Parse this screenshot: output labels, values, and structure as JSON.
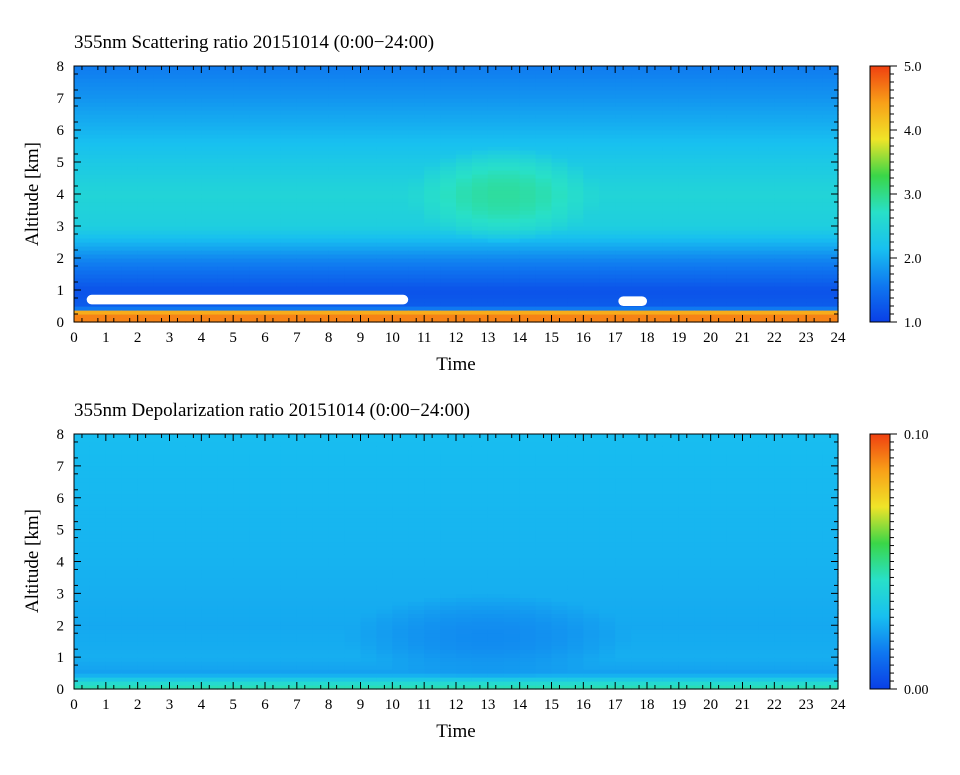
{
  "colors": {
    "scale": [
      "#0a3fe6",
      "#0f78f0",
      "#18c0f0",
      "#28e0c8",
      "#3ad648",
      "#f0e428",
      "#f8a018",
      "#f04010"
    ]
  },
  "chart_data": [
    {
      "type": "heatmap",
      "title": "355nm Scattering ratio  20151014 (0:00−24:00)",
      "xlabel": "Time",
      "ylabel": "Altitude [km]",
      "xlim": [
        0,
        24
      ],
      "ylim": [
        0,
        8
      ],
      "x_ticks": [
        "0",
        "1",
        "2",
        "3",
        "4",
        "5",
        "6",
        "7",
        "8",
        "9",
        "10",
        "11",
        "12",
        "13",
        "14",
        "15",
        "16",
        "17",
        "18",
        "19",
        "20",
        "21",
        "22",
        "23",
        "24"
      ],
      "y_ticks": [
        "0",
        "1",
        "2",
        "3",
        "4",
        "5",
        "6",
        "7",
        "8"
      ],
      "colorbar": {
        "range": [
          1.0,
          5.0
        ],
        "tick_labels": [
          "1.0",
          "2.0",
          "3.0",
          "4.0",
          "5.0"
        ]
      },
      "profile": [
        {
          "altitude": 0.3,
          "value": 4.6
        },
        {
          "altitude": 0.45,
          "value": 1.3
        },
        {
          "altitude": 1.0,
          "value": 1.2
        },
        {
          "altitude": 2.0,
          "value": 1.7
        },
        {
          "altitude": 3.0,
          "value": 2.4
        },
        {
          "altitude": 4.0,
          "value": 2.5
        },
        {
          "altitude": 5.0,
          "value": 2.3
        },
        {
          "altitude": 6.0,
          "value": 2.05
        },
        {
          "altitude": 7.0,
          "value": 1.8
        },
        {
          "altitude": 8.0,
          "value": 1.6
        }
      ],
      "features": [
        {
          "name": "enhanced aerosol layer",
          "t_start": 10.5,
          "t_end": 16.5,
          "alt_start": 2.5,
          "alt_end": 5.5,
          "value": 2.9
        },
        {
          "name": "no-data gap",
          "t_start": 0.4,
          "t_end": 10.5,
          "alt_start": 0.55,
          "alt_end": 0.85,
          "value": null
        },
        {
          "name": "no-data gap",
          "t_start": 17.1,
          "t_end": 18.0,
          "alt_start": 0.5,
          "alt_end": 0.8,
          "value": null
        }
      ]
    },
    {
      "type": "heatmap",
      "title": "355nm Depolarization ratio  20151014 (0:00−24:00)",
      "xlabel": "Time",
      "ylabel": "Altitude [km]",
      "xlim": [
        0,
        24
      ],
      "ylim": [
        0,
        8
      ],
      "x_ticks": [
        "0",
        "1",
        "2",
        "3",
        "4",
        "5",
        "6",
        "7",
        "8",
        "9",
        "10",
        "11",
        "12",
        "13",
        "14",
        "15",
        "16",
        "17",
        "18",
        "19",
        "20",
        "21",
        "22",
        "23",
        "24"
      ],
      "y_ticks": [
        "0",
        "1",
        "2",
        "3",
        "4",
        "5",
        "6",
        "7",
        "8"
      ],
      "colorbar": {
        "range": [
          0.0,
          0.1
        ],
        "tick_labels": [
          "0.00",
          "0.10"
        ]
      },
      "profile": [
        {
          "altitude": 0.1,
          "value": 0.045
        },
        {
          "altitude": 0.5,
          "value": 0.022
        },
        {
          "altitude": 1.0,
          "value": 0.025
        },
        {
          "altitude": 2.0,
          "value": 0.024
        },
        {
          "altitude": 4.0,
          "value": 0.026
        },
        {
          "altitude": 6.0,
          "value": 0.027
        },
        {
          "altitude": 8.0,
          "value": 0.028
        }
      ],
      "features": [
        {
          "name": "lower depolarization region",
          "t_start": 8.5,
          "t_end": 17.5,
          "alt_start": 0.3,
          "alt_end": 3.0,
          "value": 0.018
        }
      ]
    }
  ]
}
